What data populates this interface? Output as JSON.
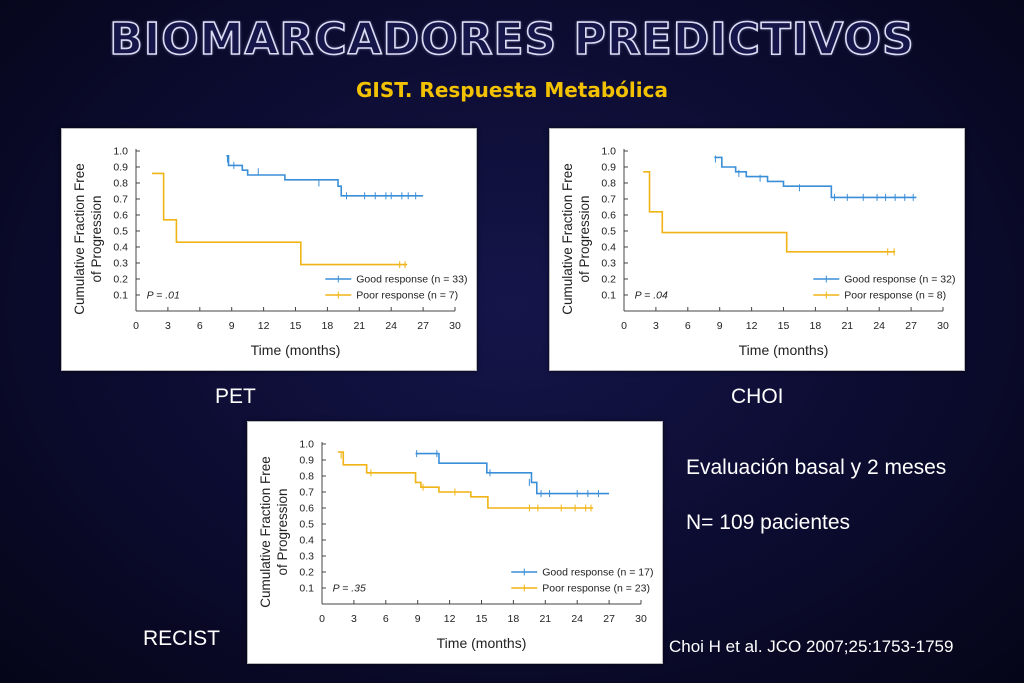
{
  "title": "BIOMARCADORES PREDICTIVOS",
  "subtitle": "GIST. Respuesta Metabólica",
  "notes": {
    "evaluation": "Evaluación basal y  2 meses",
    "patients": "N= 109 pacientes"
  },
  "reference": "Choi H et al. JCO 2007;25:1753-1759",
  "colors": {
    "good": "#3b8fd8",
    "poor": "#f0b416"
  },
  "chart_data": [
    {
      "id": "pet",
      "type": "line",
      "panel_label": "PET",
      "xlabel": "Time (months)",
      "ylabel": "Cumulative Fraction Free of Progression",
      "ylabel_lines": [
        "Cumulative Fraction Free",
        "of Progression"
      ],
      "xlim": [
        0,
        30
      ],
      "ylim": [
        0,
        1.0
      ],
      "xticks": [
        "0",
        "3",
        "6",
        "9",
        "12",
        "15",
        "18",
        "21",
        "24",
        "27",
        "30"
      ],
      "yticks": [
        "0.1",
        "0.2",
        "0.3",
        "0.4",
        "0.5",
        "0.6",
        "0.7",
        "0.8",
        "0.9",
        "1.0"
      ],
      "p_value": "P = .01",
      "legend_placement": "bottom-right",
      "series": [
        {
          "name": "Good response (n = 33)",
          "color_key": "good",
          "steps": [
            [
              8.5,
              0.97
            ],
            [
              8.7,
              0.91
            ],
            [
              10,
              0.88
            ],
            [
              10.5,
              0.85
            ],
            [
              14,
              0.82
            ],
            [
              19,
              0.78
            ],
            [
              19.3,
              0.72
            ],
            [
              27,
              0.72
            ]
          ],
          "censors": [
            [
              8.6,
              0.95
            ],
            [
              9.2,
              0.91
            ],
            [
              11.5,
              0.87
            ],
            [
              17.2,
              0.8
            ],
            [
              19.8,
              0.72
            ],
            [
              21.5,
              0.72
            ],
            [
              22.5,
              0.72
            ],
            [
              23.5,
              0.72
            ],
            [
              24,
              0.72
            ],
            [
              25,
              0.72
            ],
            [
              25.6,
              0.72
            ],
            [
              26.3,
              0.72
            ]
          ]
        },
        {
          "name": "Poor response (n = 7)",
          "color_key": "poor",
          "steps": [
            [
              1.5,
              0.86
            ],
            [
              2.6,
              0.86
            ],
            [
              2.6,
              0.57
            ],
            [
              3.8,
              0.57
            ],
            [
              3.8,
              0.43
            ],
            [
              15.5,
              0.43
            ],
            [
              15.5,
              0.29
            ],
            [
              25.5,
              0.29
            ]
          ],
          "censors": [
            [
              24.8,
              0.29
            ],
            [
              25.3,
              0.29
            ]
          ]
        }
      ]
    },
    {
      "id": "choi",
      "type": "line",
      "panel_label": "CHOI",
      "xlabel": "Time (months)",
      "ylabel": "Cumulative Fraction Free of Progression",
      "ylabel_lines": [
        "Cumulative Fraction Free",
        "of Progression"
      ],
      "xlim": [
        0,
        30
      ],
      "ylim": [
        0,
        1.0
      ],
      "xticks": [
        "0",
        "3",
        "6",
        "9",
        "12",
        "15",
        "18",
        "21",
        "24",
        "27",
        "30"
      ],
      "yticks": [
        "0.1",
        "0.2",
        "0.3",
        "0.4",
        "0.5",
        "0.6",
        "0.7",
        "0.8",
        "0.9",
        "1.0"
      ],
      "p_value": "P = .04",
      "legend_placement": "bottom-right",
      "series": [
        {
          "name": "Good response (n = 32)",
          "color_key": "good",
          "steps": [
            [
              8.5,
              0.96
            ],
            [
              9.2,
              0.9
            ],
            [
              10.5,
              0.87
            ],
            [
              11.5,
              0.84
            ],
            [
              13.5,
              0.81
            ],
            [
              15,
              0.78
            ],
            [
              19.5,
              0.71
            ],
            [
              27.5,
              0.71
            ]
          ],
          "censors": [
            [
              8.6,
              0.95
            ],
            [
              10.8,
              0.86
            ],
            [
              12.8,
              0.83
            ],
            [
              16.5,
              0.77
            ],
            [
              19.8,
              0.71
            ],
            [
              21,
              0.71
            ],
            [
              22.5,
              0.71
            ],
            [
              23.8,
              0.71
            ],
            [
              24.6,
              0.71
            ],
            [
              25.5,
              0.71
            ],
            [
              26.4,
              0.71
            ],
            [
              27.2,
              0.71
            ]
          ]
        },
        {
          "name": "Poor response (n = 8)",
          "color_key": "poor",
          "steps": [
            [
              1.8,
              0.87
            ],
            [
              2.4,
              0.87
            ],
            [
              2.4,
              0.62
            ],
            [
              3.6,
              0.62
            ],
            [
              3.6,
              0.49
            ],
            [
              15.3,
              0.49
            ],
            [
              15.3,
              0.37
            ],
            [
              25.5,
              0.37
            ]
          ],
          "censors": [
            [
              24.8,
              0.37
            ],
            [
              25.4,
              0.37
            ]
          ]
        }
      ]
    },
    {
      "id": "recist",
      "type": "line",
      "panel_label": "RECIST",
      "xlabel": "Time (months)",
      "ylabel": "Cumulative Fraction Free of Progression",
      "ylabel_lines": [
        "Cumulative Fraction Free",
        "of Progression"
      ],
      "xlim": [
        0,
        30
      ],
      "ylim": [
        0,
        1.0
      ],
      "xticks": [
        "0",
        "3",
        "6",
        "9",
        "12",
        "15",
        "18",
        "21",
        "24",
        "27",
        "30"
      ],
      "yticks": [
        "0.1",
        "0.2",
        "0.3",
        "0.4",
        "0.5",
        "0.6",
        "0.7",
        "0.8",
        "0.9",
        "1.0"
      ],
      "p_value": "P = .35",
      "legend_placement": "bottom-right",
      "series": [
        {
          "name": "Good response (n = 17)",
          "color_key": "good",
          "steps": [
            [
              8.8,
              0.94
            ],
            [
              11,
              0.88
            ],
            [
              15.5,
              0.82
            ],
            [
              19.7,
              0.76
            ],
            [
              20.2,
              0.69
            ],
            [
              27,
              0.69
            ]
          ],
          "censors": [
            [
              8.9,
              0.94
            ],
            [
              10.8,
              0.94
            ],
            [
              15.8,
              0.82
            ],
            [
              19.5,
              0.76
            ],
            [
              20.6,
              0.69
            ],
            [
              21.4,
              0.69
            ],
            [
              24,
              0.69
            ],
            [
              25,
              0.69
            ],
            [
              26,
              0.69
            ]
          ]
        },
        {
          "name": "Poor response (n = 23)",
          "color_key": "poor",
          "steps": [
            [
              1.5,
              0.95
            ],
            [
              2,
              0.87
            ],
            [
              4.2,
              0.82
            ],
            [
              8.8,
              0.76
            ],
            [
              9.3,
              0.73
            ],
            [
              11,
              0.7
            ],
            [
              14,
              0.67
            ],
            [
              15.6,
              0.6
            ],
            [
              25.5,
              0.6
            ]
          ],
          "censors": [
            [
              1.8,
              0.93
            ],
            [
              4.6,
              0.82
            ],
            [
              9.5,
              0.73
            ],
            [
              12.5,
              0.7
            ],
            [
              19.5,
              0.6
            ],
            [
              20.3,
              0.6
            ],
            [
              22.5,
              0.6
            ],
            [
              23.8,
              0.6
            ],
            [
              24.8,
              0.6
            ],
            [
              25.3,
              0.6
            ]
          ]
        }
      ]
    }
  ]
}
